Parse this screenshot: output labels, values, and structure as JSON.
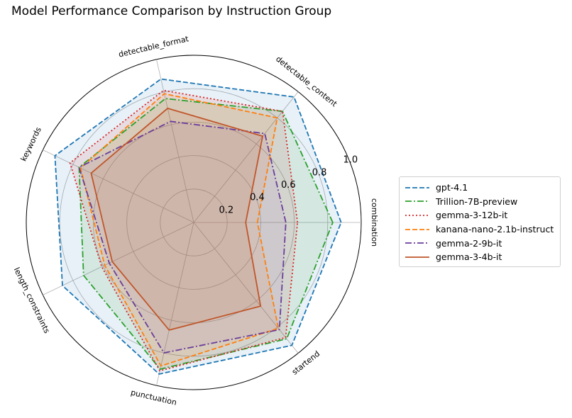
{
  "chart_data": {
    "type": "radar",
    "title": "Model Performance Comparison by Instruction Group",
    "categories": [
      "combination",
      "detectable_content",
      "detectable_format",
      "keywords",
      "length_constraints",
      "punctuation",
      "startend"
    ],
    "radial_ticks": [
      "0.2",
      "0.4",
      "0.6",
      "0.8",
      "1.0"
    ],
    "rlim": [
      0,
      1.0
    ],
    "grid": true,
    "legend_position": "right",
    "series": [
      {
        "name": "gpt-4.1",
        "color": "#1f77b4",
        "linestyle": "dashed",
        "fill": "#1f77b4",
        "values": [
          0.88,
          0.96,
          0.88,
          0.92,
          0.87,
          0.93,
          0.94
        ]
      },
      {
        "name": "Trillion-7B-preview",
        "color": "#2ca02c",
        "linestyle": "dashdot",
        "fill": "#2ca02c",
        "values": [
          0.83,
          0.85,
          0.76,
          0.76,
          0.73,
          0.9,
          0.89
        ]
      },
      {
        "name": "gemma-3-12b-it",
        "color": "#d62728",
        "linestyle": "dotted",
        "fill": "#d62728",
        "values": [
          0.62,
          0.85,
          0.81,
          0.82,
          0.61,
          0.91,
          0.88
        ]
      },
      {
        "name": "kanana-nano-2.1b-instruct",
        "color": "#ff7f0e",
        "linestyle": "dashed",
        "fill": "#ff7f0e",
        "values": [
          0.38,
          0.8,
          0.79,
          0.75,
          0.59,
          0.88,
          0.81
        ]
      },
      {
        "name": "gemma-2-9b-it",
        "color": "#6a3d9a",
        "linestyle": "dashdot",
        "fill": "#9467bd",
        "values": [
          0.55,
          0.68,
          0.62,
          0.76,
          0.56,
          0.8,
          0.82
        ]
      },
      {
        "name": "gemma-3-4b-it",
        "color": "#c0562a",
        "linestyle": "solid",
        "fill": "#c0562a",
        "values": [
          0.31,
          0.66,
          0.7,
          0.68,
          0.54,
          0.66,
          0.64
        ]
      }
    ]
  }
}
